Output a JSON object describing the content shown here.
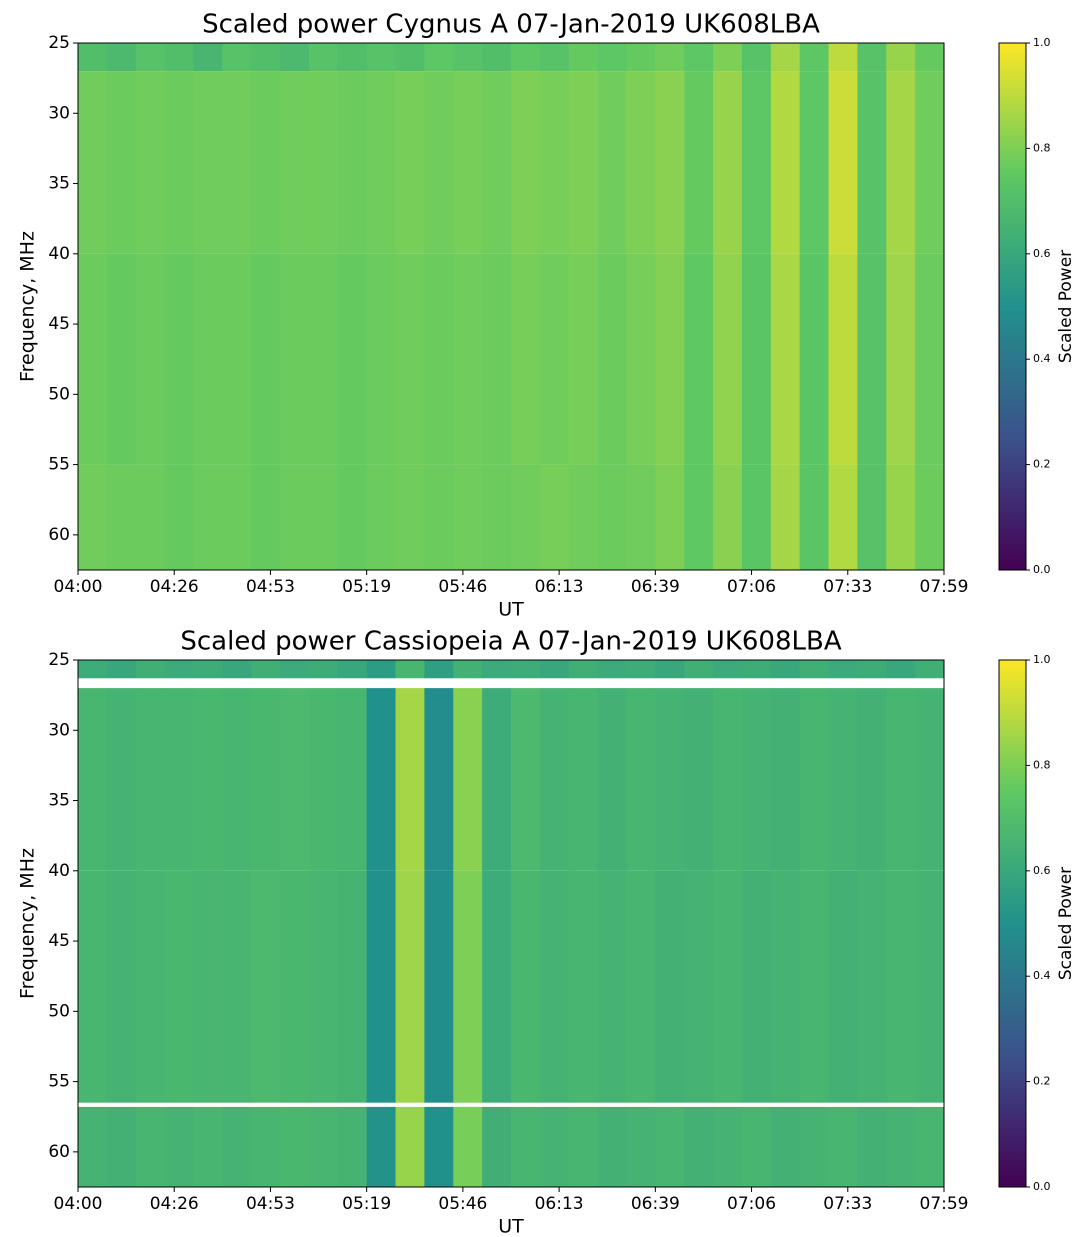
{
  "chart_data": [
    {
      "type": "heatmap",
      "title": "Scaled power Cygnus A 07-Jan-2019 UK608LBA",
      "xlabel": "UT",
      "ylabel": "Frequency, MHz",
      "colorbar_label": "Scaled Power",
      "xticks": [
        "04:00",
        "04:26",
        "04:53",
        "05:19",
        "05:46",
        "06:13",
        "06:39",
        "07:06",
        "07:33",
        "07:59"
      ],
      "ylim": [
        25,
        62.5
      ],
      "yticks": [
        25,
        30,
        35,
        40,
        45,
        50,
        55,
        60
      ],
      "zlim": [
        0,
        1
      ],
      "zticks": [
        {
          "value": 0,
          "label": "0.0"
        },
        {
          "value": 0.2,
          "label": "0.2"
        },
        {
          "value": 0.4,
          "label": "0.4"
        },
        {
          "value": 0.6,
          "label": "0.6"
        },
        {
          "value": 0.8,
          "label": "0.8"
        },
        {
          "value": 1,
          "label": "1.0"
        }
      ],
      "y_edges": [
        25,
        27,
        40,
        55,
        62.5
      ],
      "z": [
        [
          0.7,
          0.68,
          0.72,
          0.7,
          0.66,
          0.72,
          0.7,
          0.68,
          0.72,
          0.7,
          0.72,
          0.7,
          0.74,
          0.72,
          0.7,
          0.74,
          0.72,
          0.76,
          0.74,
          0.76,
          0.78,
          0.74,
          0.8,
          0.72,
          0.86,
          0.74,
          0.9,
          0.72,
          0.84,
          0.76
        ],
        [
          0.78,
          0.77,
          0.78,
          0.77,
          0.78,
          0.78,
          0.77,
          0.78,
          0.78,
          0.77,
          0.78,
          0.79,
          0.78,
          0.79,
          0.78,
          0.8,
          0.79,
          0.8,
          0.78,
          0.8,
          0.82,
          0.76,
          0.84,
          0.74,
          0.88,
          0.74,
          0.92,
          0.72,
          0.86,
          0.78
        ],
        [
          0.77,
          0.76,
          0.77,
          0.76,
          0.77,
          0.77,
          0.76,
          0.77,
          0.77,
          0.76,
          0.77,
          0.78,
          0.77,
          0.78,
          0.77,
          0.79,
          0.78,
          0.79,
          0.77,
          0.79,
          0.81,
          0.75,
          0.83,
          0.73,
          0.87,
          0.73,
          0.9,
          0.72,
          0.85,
          0.77
        ],
        [
          0.78,
          0.77,
          0.77,
          0.76,
          0.77,
          0.77,
          0.76,
          0.77,
          0.77,
          0.76,
          0.77,
          0.78,
          0.77,
          0.78,
          0.77,
          0.78,
          0.79,
          0.78,
          0.77,
          0.78,
          0.8,
          0.75,
          0.82,
          0.73,
          0.86,
          0.73,
          0.88,
          0.72,
          0.84,
          0.77
        ]
      ]
    },
    {
      "type": "heatmap",
      "title": "Scaled power Cassiopeia A 07-Jan-2019 UK608LBA",
      "xlabel": "UT",
      "ylabel": "Frequency, MHz",
      "colorbar_label": "Scaled Power",
      "xticks": [
        "04:00",
        "04:26",
        "04:53",
        "05:19",
        "05:46",
        "06:13",
        "06:39",
        "07:06",
        "07:33",
        "07:59"
      ],
      "ylim": [
        25,
        62.5
      ],
      "yticks": [
        25,
        30,
        35,
        40,
        45,
        50,
        55,
        60
      ],
      "zlim": [
        0,
        1
      ],
      "zticks": [
        {
          "value": 0,
          "label": "0.0"
        },
        {
          "value": 0.2,
          "label": "0.2"
        },
        {
          "value": 0.4,
          "label": "0.4"
        },
        {
          "value": 0.6,
          "label": "0.6"
        },
        {
          "value": 0.8,
          "label": "0.8"
        },
        {
          "value": 1,
          "label": "1.0"
        }
      ],
      "y_edges": [
        25,
        26.3,
        27,
        40,
        56.5,
        56.8,
        62.5
      ],
      "z": [
        [
          0.62,
          0.6,
          0.63,
          0.61,
          0.62,
          0.6,
          0.63,
          0.61,
          0.62,
          0.6,
          0.55,
          0.66,
          0.56,
          0.64,
          0.61,
          0.62,
          0.6,
          0.63,
          0.61,
          0.62,
          0.6,
          0.63,
          0.61,
          0.62,
          0.6,
          0.63,
          0.61,
          0.62,
          0.6,
          0.63
        ],
        [
          null,
          null,
          null,
          null,
          null,
          null,
          null,
          null,
          null,
          null,
          null,
          null,
          null,
          null,
          null,
          null,
          null,
          null,
          null,
          null,
          null,
          null,
          null,
          null,
          null,
          null,
          null,
          null,
          null,
          null
        ],
        [
          0.66,
          0.65,
          0.66,
          0.66,
          0.67,
          0.66,
          0.67,
          0.68,
          0.67,
          0.66,
          0.5,
          0.86,
          0.48,
          0.82,
          0.62,
          0.68,
          0.65,
          0.66,
          0.64,
          0.66,
          0.65,
          0.64,
          0.66,
          0.65,
          0.64,
          0.66,
          0.65,
          0.64,
          0.66,
          0.65
        ],
        [
          0.66,
          0.65,
          0.66,
          0.67,
          0.66,
          0.66,
          0.68,
          0.67,
          0.66,
          0.65,
          0.5,
          0.85,
          0.49,
          0.8,
          0.62,
          0.67,
          0.65,
          0.66,
          0.65,
          0.66,
          0.64,
          0.65,
          0.66,
          0.64,
          0.65,
          0.66,
          0.64,
          0.65,
          0.66,
          0.65
        ],
        [
          null,
          null,
          null,
          null,
          null,
          null,
          null,
          null,
          null,
          null,
          null,
          null,
          null,
          null,
          null,
          null,
          null,
          null,
          null,
          null,
          null,
          null,
          null,
          null,
          null,
          null,
          null,
          null,
          null,
          null
        ],
        [
          0.65,
          0.64,
          0.66,
          0.65,
          0.66,
          0.65,
          0.66,
          0.67,
          0.66,
          0.65,
          0.51,
          0.84,
          0.5,
          0.79,
          0.63,
          0.66,
          0.65,
          0.66,
          0.64,
          0.65,
          0.66,
          0.64,
          0.65,
          0.66,
          0.64,
          0.65,
          0.66,
          0.64,
          0.65,
          0.66
        ]
      ]
    }
  ]
}
